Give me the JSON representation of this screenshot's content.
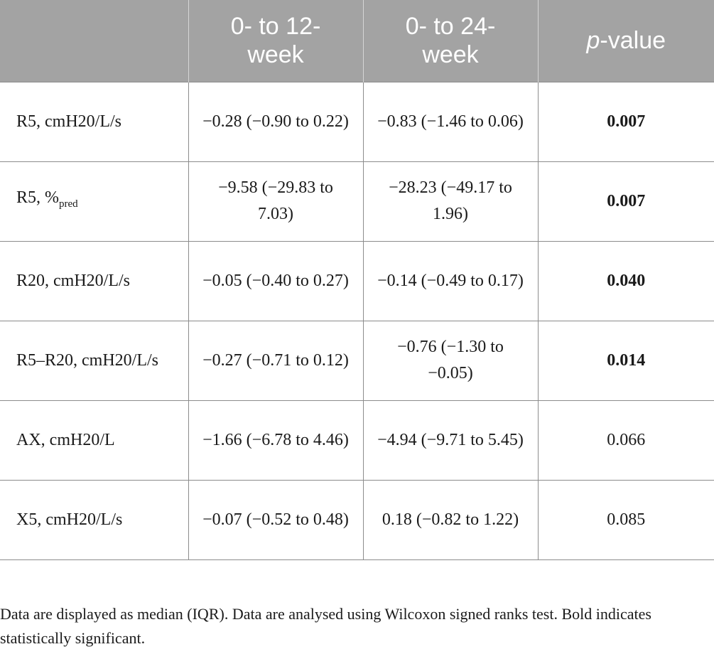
{
  "table": {
    "headers": {
      "col1": "",
      "col2": "0- to 12-week",
      "col3": "0- to 24-week",
      "col4_italic": "p",
      "col4_rest": "-value"
    },
    "rows": [
      {
        "label": "R5, cmH20/L/s",
        "sub": "",
        "v12": "−0.28 (−0.90 to 0.22)",
        "v24": "−0.83 (−1.46 to 0.06)",
        "p": "0.007",
        "significant": true
      },
      {
        "label": "R5, %",
        "sub": "pred",
        "v12": "−9.58 (−29.83 to 7.03)",
        "v24": "−28.23 (−49.17 to 1.96)",
        "p": "0.007",
        "significant": true
      },
      {
        "label": "R20, cmH20/L/s",
        "sub": "",
        "v12": "−0.05 (−0.40 to 0.27)",
        "v24": "−0.14 (−0.49 to 0.17)",
        "p": "0.040",
        "significant": true
      },
      {
        "label": "R5–R20, cmH20/L/s",
        "sub": "",
        "v12": "−0.27 (−0.71 to 0.12)",
        "v24": "−0.76 (−1.30 to −0.05)",
        "p": "0.014",
        "significant": true
      },
      {
        "label": "AX, cmH20/L",
        "sub": "",
        "v12": "−1.66 (−6.78 to 4.46)",
        "v24": "−4.94 (−9.71 to 5.45)",
        "p": "0.066",
        "significant": false
      },
      {
        "label": "X5, cmH20/L/s",
        "sub": "",
        "v12": "−0.07 (−0.52 to 0.48)",
        "v24": "0.18 (−0.82 to 1.22)",
        "p": "0.085",
        "significant": false
      }
    ]
  },
  "footnote": {
    "text": "Data are displayed as median (IQR). Data are analysed using Wilcoxon signed ranks test. Bold indicates statistically significant."
  }
}
